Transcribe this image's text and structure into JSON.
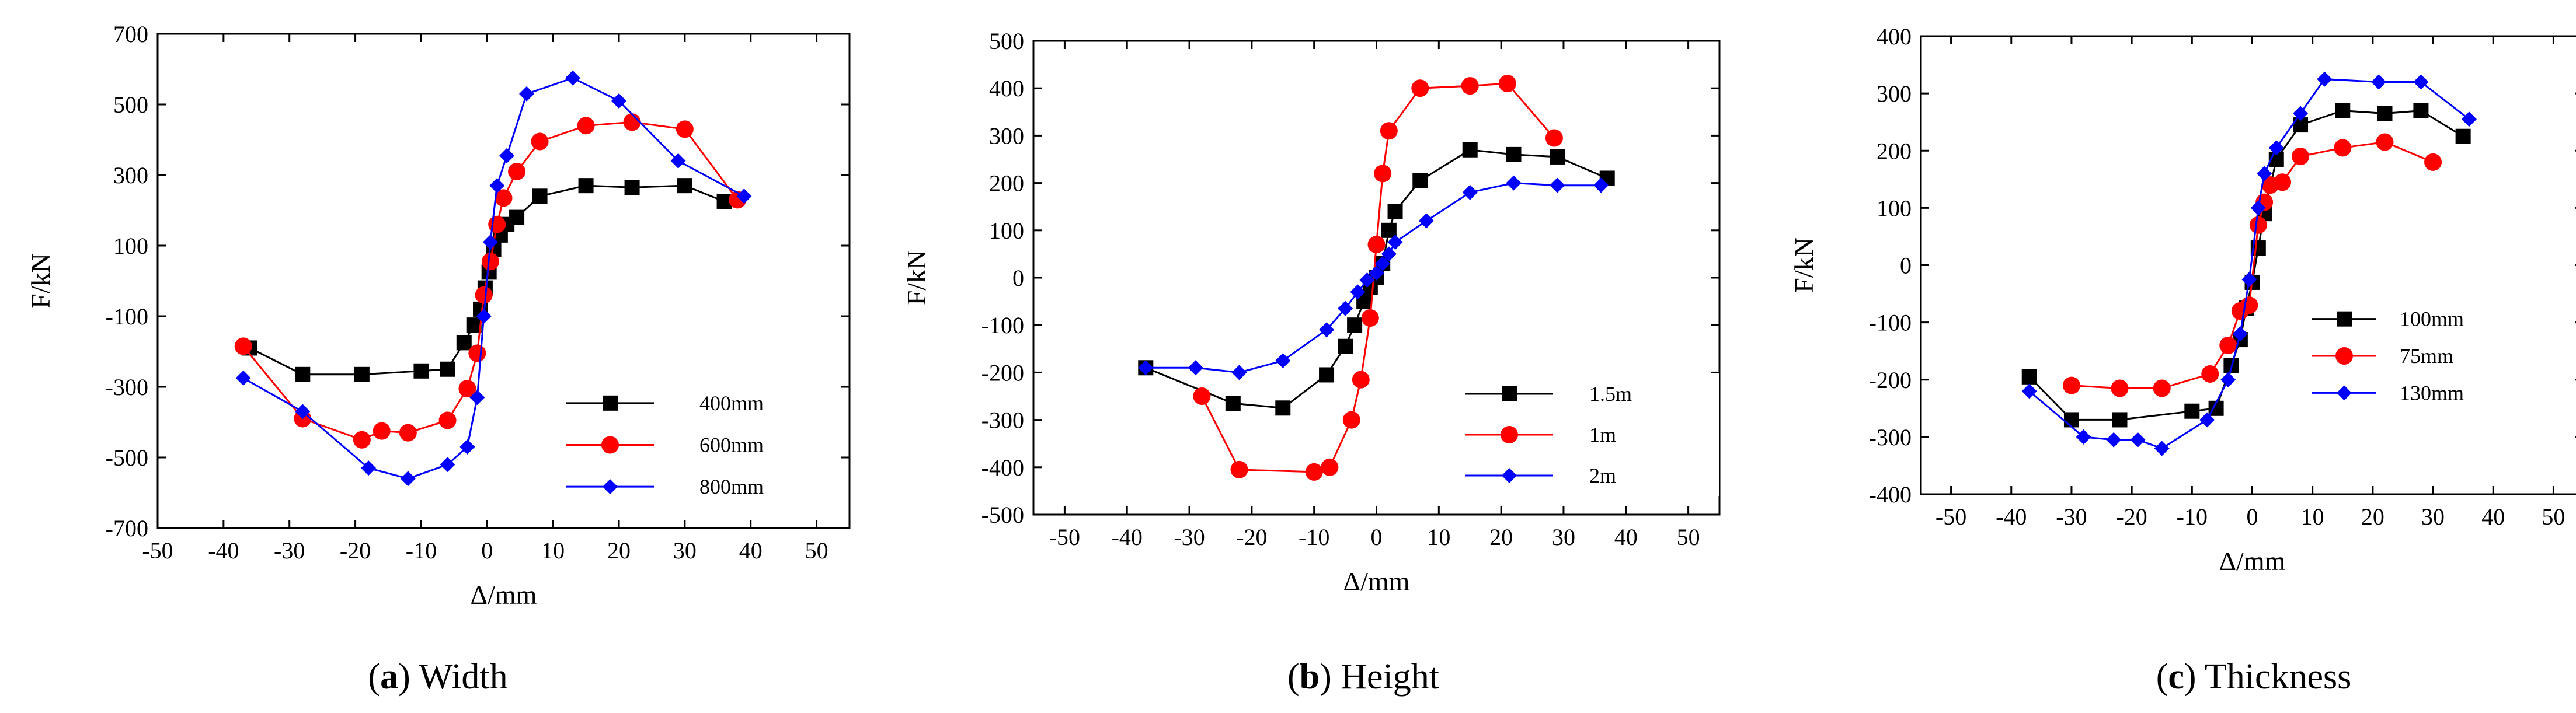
{
  "chart_data": [
    {
      "type": "line",
      "caption": {
        "prefix": "(",
        "letter": "a",
        "suffix": ") Width"
      },
      "xlabel": "Δ/mm",
      "ylabel": "F/kN",
      "xlim": [
        -50,
        55
      ],
      "ylim": [
        -700,
        700
      ],
      "xticks": [
        -50,
        -40,
        -30,
        -20,
        -10,
        0,
        10,
        20,
        30,
        40,
        50
      ],
      "yticks": [
        -700,
        -500,
        -300,
        -100,
        100,
        300,
        500,
        700
      ],
      "legend": "bottom-right",
      "series": [
        {
          "name": "400mm",
          "color": "#000000",
          "marker": "square",
          "x": [
            -36,
            -28,
            -19,
            -10,
            -6,
            -3.5,
            -2,
            -1,
            -0.3,
            0.3,
            1,
            2,
            3,
            4.5,
            8,
            15,
            22,
            30,
            36
          ],
          "y": [
            -190,
            -265,
            -265,
            -255,
            -250,
            -175,
            -125,
            -80,
            -20,
            25,
            90,
            130,
            160,
            180,
            240,
            270,
            265,
            270,
            225
          ]
        },
        {
          "name": "600mm",
          "color": "#ff0000",
          "marker": "circle",
          "x": [
            -37,
            -28,
            -19,
            -16,
            -12,
            -6,
            -3,
            -1.5,
            -0.5,
            0.5,
            1.5,
            2.5,
            4.5,
            8,
            15,
            22,
            30,
            38
          ],
          "y": [
            -185,
            -390,
            -450,
            -425,
            -430,
            -395,
            -305,
            -205,
            -40,
            55,
            160,
            235,
            310,
            395,
            440,
            450,
            430,
            230
          ]
        },
        {
          "name": "800mm",
          "color": "#0000ff",
          "marker": "diamond",
          "x": [
            -37,
            -28,
            -18,
            -12,
            -6,
            -3,
            -1.5,
            -0.5,
            0.5,
            1.5,
            3,
            6,
            13,
            20,
            29,
            39
          ],
          "y": [
            -275,
            -370,
            -530,
            -560,
            -520,
            -470,
            -330,
            -100,
            110,
            270,
            355,
            530,
            575,
            510,
            340,
            240
          ]
        }
      ]
    },
    {
      "type": "line",
      "caption": {
        "prefix": "(",
        "letter": "b",
        "suffix": ") Height"
      },
      "xlabel": "Δ/mm",
      "ylabel": "F/kN",
      "xlim": [
        -55,
        55
      ],
      "ylim": [
        -500,
        500
      ],
      "xticks": [
        -50,
        -40,
        -30,
        -20,
        -10,
        0,
        10,
        20,
        30,
        40,
        50
      ],
      "yticks": [
        -500,
        -400,
        -300,
        -200,
        -100,
        0,
        100,
        200,
        300,
        400,
        500
      ],
      "legend": "bottom-right",
      "series": [
        {
          "name": "1.5m",
          "color": "#000000",
          "marker": "square",
          "x": [
            -37,
            -23,
            -15,
            -8,
            -5,
            -3.5,
            -2,
            -1,
            0,
            1,
            2,
            3,
            7,
            15,
            22,
            29,
            37
          ],
          "y": [
            -190,
            -265,
            -275,
            -205,
            -145,
            -100,
            -50,
            -20,
            0,
            30,
            100,
            140,
            205,
            270,
            260,
            255,
            210
          ]
        },
        {
          "name": "1m",
          "color": "#ff0000",
          "marker": "circle",
          "x": [
            -28,
            -22,
            -10,
            -7.5,
            -4,
            -2.5,
            -1,
            0,
            1,
            2,
            7,
            15,
            21,
            28.5
          ],
          "y": [
            -250,
            -405,
            -410,
            -400,
            -300,
            -215,
            -85,
            70,
            220,
            310,
            400,
            405,
            410,
            295
          ]
        },
        {
          "name": "2m",
          "color": "#0000ff",
          "marker": "diamond",
          "x": [
            -37,
            -29,
            -22,
            -15,
            -8,
            -5,
            -3,
            -1.5,
            0,
            1,
            2,
            3,
            8,
            15,
            22,
            29,
            36
          ],
          "y": [
            -190,
            -190,
            -200,
            -175,
            -110,
            -65,
            -30,
            -5,
            10,
            30,
            50,
            75,
            120,
            180,
            200,
            195,
            195
          ]
        }
      ]
    },
    {
      "type": "line",
      "caption": {
        "prefix": "(",
        "letter": "c",
        "suffix": ") Thickness"
      },
      "xlabel": "Δ/mm",
      "ylabel": "F/kN",
      "xlim": [
        -55,
        55
      ],
      "ylim": [
        -400,
        400
      ],
      "xticks": [
        -50,
        -40,
        -30,
        -20,
        -10,
        0,
        10,
        20,
        30,
        40,
        50
      ],
      "yticks": [
        -400,
        -300,
        -200,
        -100,
        0,
        100,
        200,
        300,
        400
      ],
      "legend": "bottom-right",
      "series": [
        {
          "name": "100mm",
          "color": "#000000",
          "marker": "square",
          "x": [
            -37,
            -30,
            -22,
            -10,
            -6,
            -3.5,
            -2,
            -1,
            0,
            1,
            2,
            4,
            8,
            15,
            22,
            28,
            35
          ],
          "y": [
            -195,
            -270,
            -270,
            -255,
            -250,
            -175,
            -130,
            -75,
            -30,
            30,
            90,
            185,
            245,
            270,
            265,
            270,
            225
          ]
        },
        {
          "name": "75mm",
          "color": "#ff0000",
          "marker": "circle",
          "x": [
            -30,
            -22,
            -15,
            -7,
            -4,
            -2,
            -0.5,
            1,
            2,
            3,
            5,
            8,
            15,
            22,
            30
          ],
          "y": [
            -210,
            -215,
            -215,
            -190,
            -140,
            -80,
            -70,
            70,
            110,
            140,
            145,
            190,
            205,
            215,
            180
          ]
        },
        {
          "name": "130mm",
          "color": "#0000ff",
          "marker": "diamond",
          "x": [
            -37,
            -28,
            -23,
            -19,
            -15,
            -7.5,
            -4,
            -2,
            -0.5,
            1,
            2,
            4,
            8,
            12,
            21,
            28,
            36
          ],
          "y": [
            -220,
            -300,
            -305,
            -305,
            -320,
            -270,
            -200,
            -120,
            -25,
            100,
            160,
            205,
            265,
            325,
            320,
            320,
            255
          ]
        }
      ]
    }
  ]
}
